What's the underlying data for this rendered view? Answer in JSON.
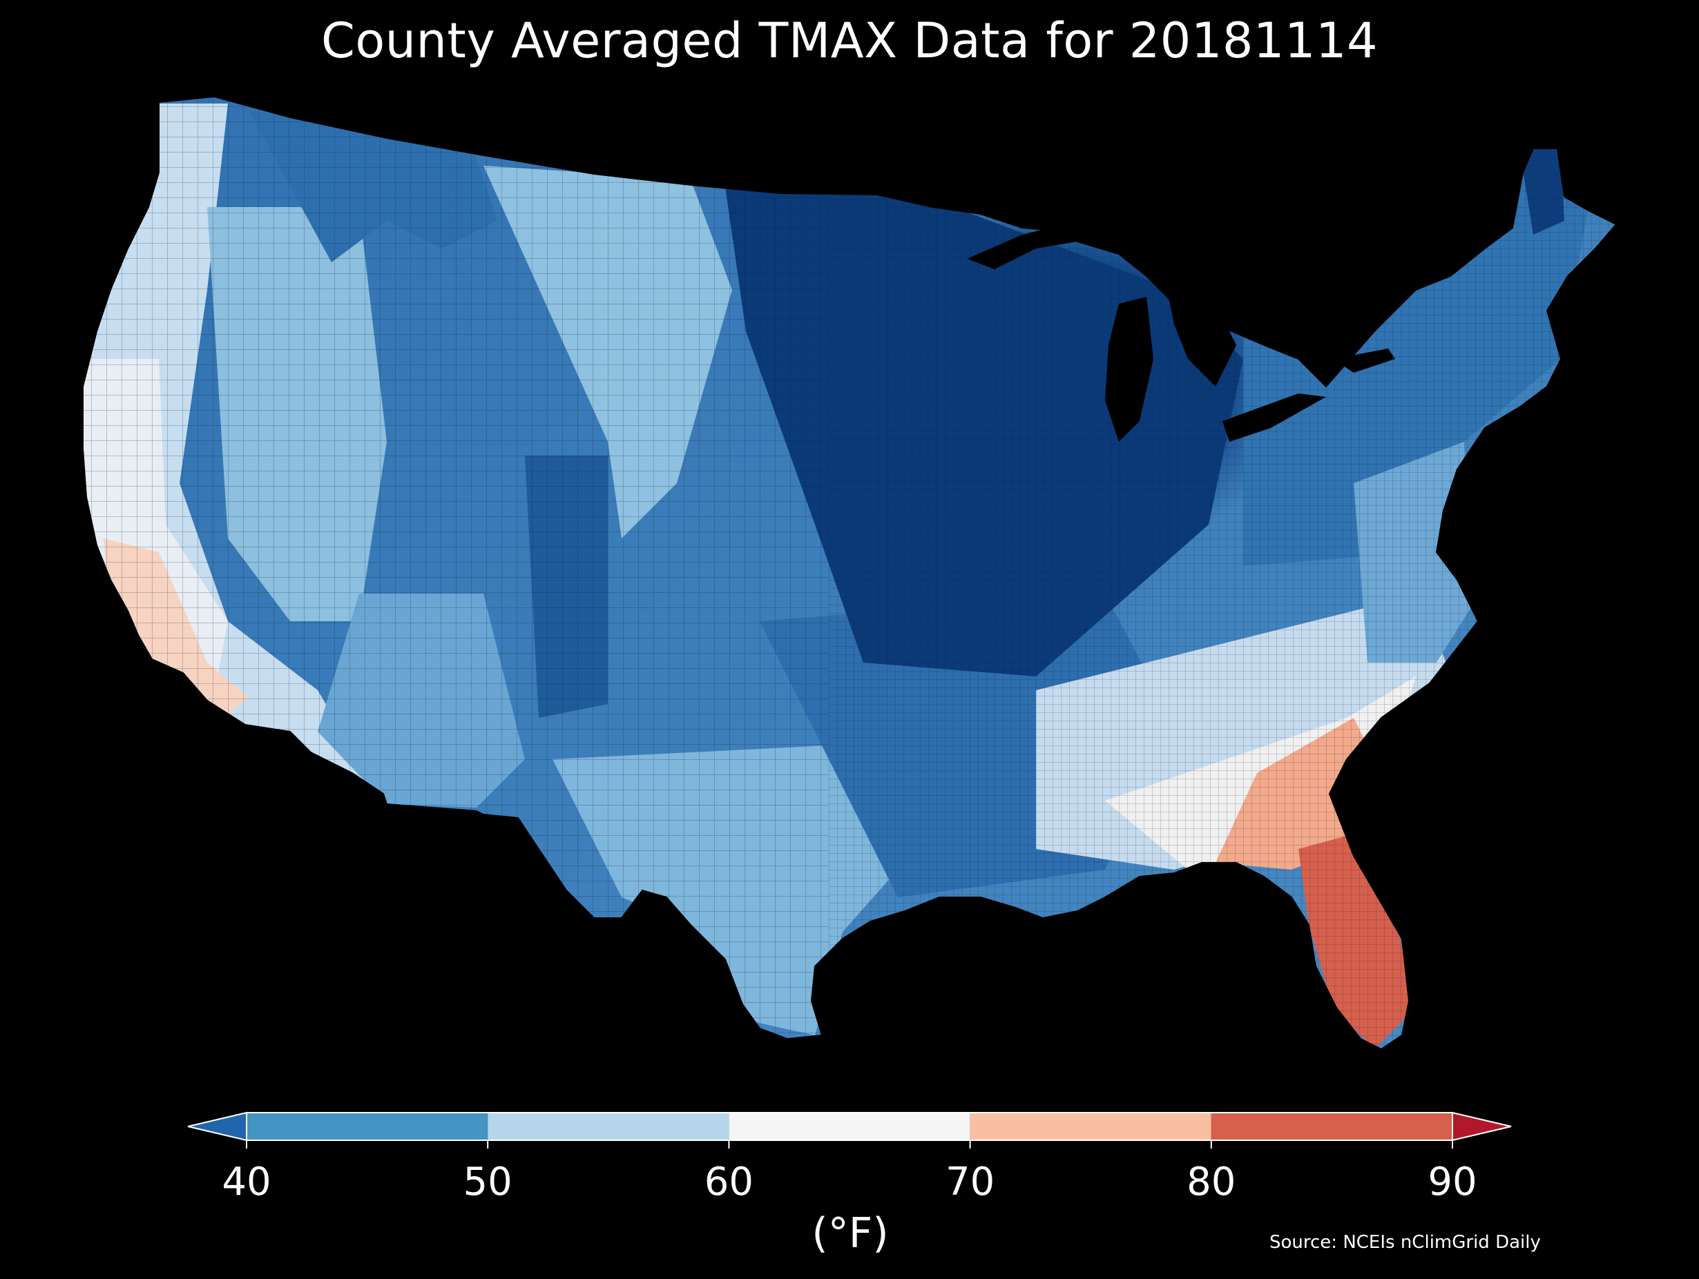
{
  "title": "County Averaged TMAX Data for 20181114",
  "colorbar": {
    "unit": "(°F)",
    "ticks": [
      "40",
      "50",
      "60",
      "70",
      "80",
      "90"
    ],
    "bins": [
      {
        "from": 40,
        "to": 50,
        "color": "#4393c3"
      },
      {
        "from": 50,
        "to": 60,
        "color": "#b5d6ea"
      },
      {
        "from": 60,
        "to": 70,
        "color": "#f5f5f5"
      },
      {
        "from": 70,
        "to": 80,
        "color": "#f8bfa3"
      },
      {
        "from": 80,
        "to": 90,
        "color": "#d6604d"
      }
    ],
    "under_color": "#2166ac",
    "over_color": "#b2182b"
  },
  "source": "Source: NCEIs nClimGrid Daily",
  "map_colors": {
    "very_cold": "#08306b",
    "cold": "#2166ac",
    "cool": "#4393c3",
    "mild": "#92c5de",
    "neutral": "#f5f5f5",
    "warm": "#f8bfa3",
    "hot": "#d6604d"
  }
}
